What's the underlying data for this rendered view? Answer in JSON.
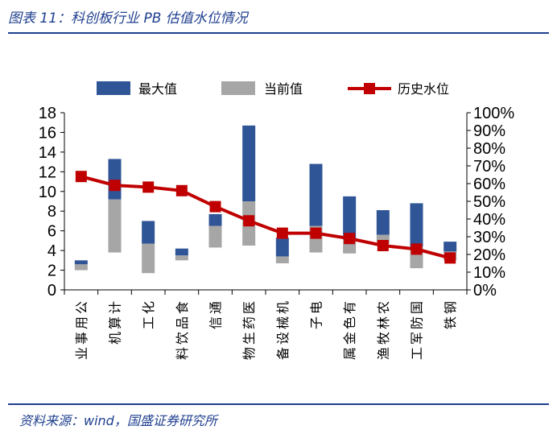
{
  "header": {
    "title": "图表 11：科创板行业 PB 估值水位情况"
  },
  "footer": {
    "source": "资料来源：wind，国盛证券研究所"
  },
  "chart_data": {
    "type": "bar",
    "title": "",
    "categories": [
      "公用事业",
      "计算机",
      "化工",
      "食品饮料",
      "通信",
      "医药生物",
      "机械设备",
      "电子",
      "有色金属",
      "农林牧渔",
      "国防军工",
      "钢铁"
    ],
    "series": [
      {
        "name": "最大值",
        "kind": "bar",
        "axis": "left",
        "color": "#2f5597",
        "values": [
          3.0,
          13.3,
          7.0,
          4.2,
          7.7,
          16.7,
          5.3,
          12.8,
          9.5,
          8.1,
          8.8,
          4.9
        ]
      },
      {
        "name": "当前值",
        "kind": "bar",
        "axis": "left",
        "color": "#a6a6a6",
        "values": [
          2.6,
          9.2,
          4.7,
          3.5,
          6.5,
          9.0,
          3.4,
          6.5,
          5.1,
          5.6,
          4.4,
          3.9
        ]
      },
      {
        "name": "历史水位",
        "kind": "line",
        "axis": "right",
        "color": "#c00000",
        "values": [
          64,
          59,
          58,
          56,
          47,
          39,
          32,
          32,
          29,
          25,
          23,
          18
        ]
      }
    ],
    "yleft": {
      "ticks": [
        "0",
        "2",
        "4",
        "6",
        "8",
        "10",
        "12",
        "14",
        "16",
        "18"
      ],
      "lim": [
        0,
        18
      ]
    },
    "yright": {
      "ticks": [
        "0%",
        "10%",
        "20%",
        "30%",
        "40%",
        "50%",
        "60%",
        "70%",
        "80%",
        "90%",
        "100%"
      ],
      "lim": [
        0,
        100
      ]
    },
    "lower_band_min": [
      2.0,
      3.8,
      1.7,
      3.0,
      4.3,
      4.5,
      2.7,
      3.8,
      3.7,
      4.7,
      2.2,
      3.0
    ],
    "legend_position": "top"
  }
}
